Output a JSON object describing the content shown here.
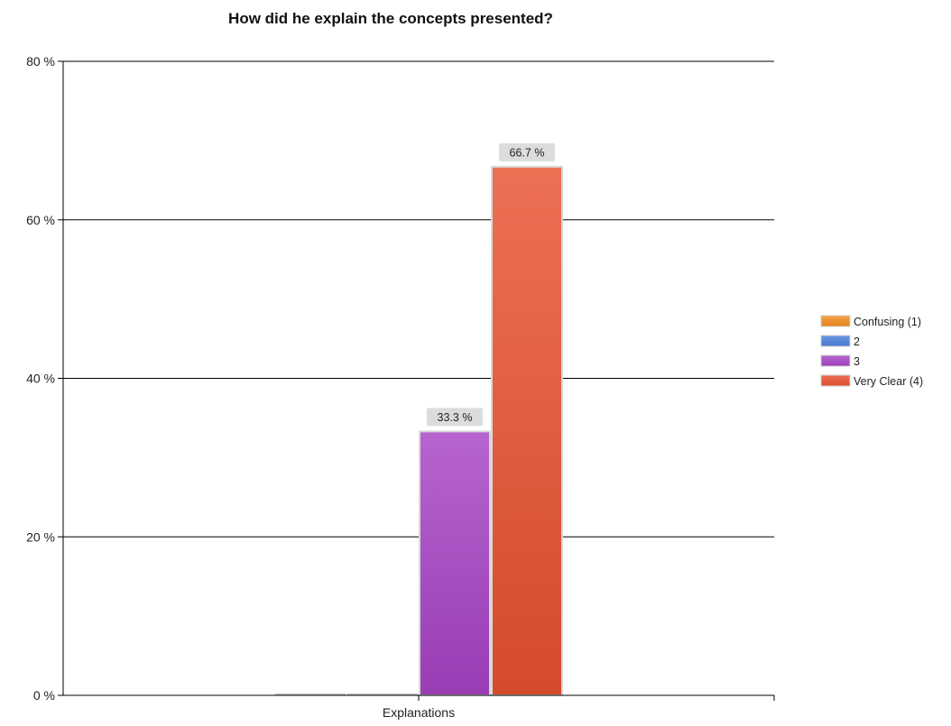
{
  "chart_data": {
    "type": "bar",
    "title": "How did he explain the concepts presented?",
    "categories": [
      "Explanations"
    ],
    "series": [
      {
        "name": "Confusing (1)",
        "values": [
          0
        ],
        "color": "#f08a1c",
        "value_label": ""
      },
      {
        "name": "2",
        "values": [
          0
        ],
        "color": "#4a7fd9",
        "value_label": ""
      },
      {
        "name": "3",
        "values": [
          33.3
        ],
        "color": "#a642c4",
        "value_label": "33.3 %"
      },
      {
        "name": "Very Clear (4)",
        "values": [
          66.7
        ],
        "color": "#e8502f",
        "value_label": "66.7 %"
      }
    ],
    "ylim": [
      0,
      80
    ],
    "yticks": [
      {
        "value": 0,
        "label": "0 %"
      },
      {
        "value": 20,
        "label": "20 %"
      },
      {
        "value": 40,
        "label": "40 %"
      },
      {
        "value": 60,
        "label": "60 %"
      },
      {
        "value": 80,
        "label": "80 %"
      }
    ],
    "grid": true,
    "legend": "right"
  }
}
